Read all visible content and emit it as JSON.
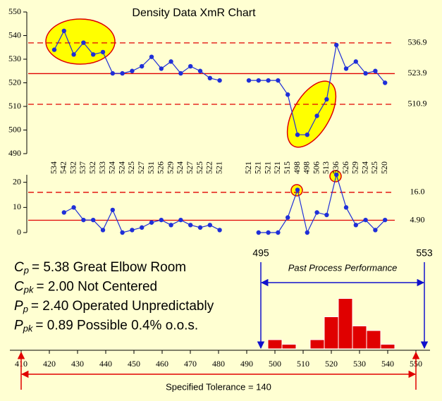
{
  "title": "Density Data XmR Chart",
  "chart_data": [
    {
      "type": "line",
      "series": [
        {
          "color": "#1f2fd8",
          "values": [
            534,
            542,
            532,
            537,
            532,
            533,
            524,
            524,
            525,
            527,
            531,
            526,
            529,
            524,
            527,
            525,
            522,
            521,
            null,
            null,
            521,
            521,
            521,
            521,
            515,
            498,
            498,
            506,
            513,
            536,
            526,
            529,
            524,
            525,
            520
          ]
        }
      ],
      "ylim": [
        490,
        550
      ],
      "yticks": [
        490,
        500,
        510,
        520,
        530,
        540,
        550
      ],
      "limit_color": "#e00000",
      "limits": [
        {
          "value": 536.9,
          "dashed": true
        },
        {
          "value": 523.9,
          "dashed": false
        },
        {
          "value": 510.9,
          "dashed": true
        }
      ]
    },
    {
      "type": "line",
      "series": [
        {
          "color": "#1f2fd8",
          "values": [
            null,
            8,
            10,
            5,
            5,
            1,
            9,
            0,
            1,
            2,
            4,
            5,
            3,
            5,
            3,
            2,
            3,
            1,
            null,
            null,
            null,
            0,
            0,
            0,
            6,
            17,
            0,
            8,
            7,
            23,
            10,
            3,
            5,
            1,
            5
          ]
        }
      ],
      "ylim": [
        0,
        23
      ],
      "yticks": [
        0,
        10,
        20
      ],
      "limit_color": "#e00000",
      "limits": [
        {
          "value": 16,
          "label": "16.0",
          "dashed": true
        },
        {
          "value": 4.9,
          "label": "4.90",
          "dashed": false
        }
      ]
    },
    {
      "type": "histogram",
      "bins": [
        497.5,
        502.5,
        507.5,
        512.5,
        517.5,
        522.5,
        527.5,
        532.5,
        537.5,
        542.5
      ],
      "values": [
        2,
        1,
        0,
        2,
        7,
        11,
        5,
        4,
        1
      ],
      "color": "#e00000",
      "xlim": [
        406,
        555
      ],
      "xticks": [
        410,
        420,
        430,
        440,
        450,
        460,
        470,
        480,
        490,
        500,
        510,
        520,
        530,
        540,
        550
      ],
      "process_limits": [
        495,
        553
      ],
      "process_color": "#1010cc",
      "process_text": "Past Process Performance",
      "spec_limits": [
        410,
        550
      ],
      "spec_color": "#e00000",
      "spec_text": "Specified Tolerance = 140"
    }
  ],
  "capability": [
    {
      "symbol": "C",
      "sub": "p",
      "text": "= 5.38  Great Elbow Room"
    },
    {
      "symbol": "C",
      "sub": "pk",
      "text": "= 2.00  Not Centered"
    },
    {
      "symbol": "P",
      "sub": "p",
      "text": "= 2.40  Operated Unpredictably"
    },
    {
      "symbol": "P",
      "sub": "pk",
      "text": "= 0.89  Possible 0.4% o.o.s."
    }
  ]
}
